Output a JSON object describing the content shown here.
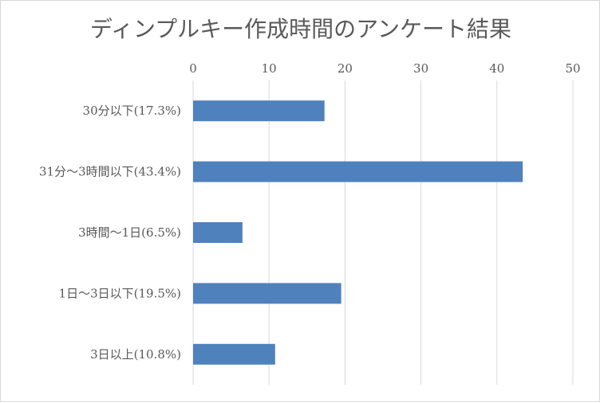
{
  "chart_data": {
    "type": "bar",
    "orientation": "horizontal",
    "title": "ディンプルキー作成時間のアンケート結果",
    "categories": [
      "30分以下(17.3%)",
      "31分〜3時間以下(43.4%)",
      "3時間〜1日(6.5%)",
      "1日〜3日以下(19.5%)",
      "3日以上(10.8%)"
    ],
    "values": [
      17.3,
      43.4,
      6.5,
      19.5,
      10.8
    ],
    "xlim": [
      0,
      50
    ],
    "xticks": [
      "0",
      "10",
      "20",
      "30",
      "40",
      "50"
    ],
    "xtick_values": [
      0,
      10,
      20,
      30,
      40,
      50
    ],
    "axis_position": "top",
    "grid": true,
    "legend": "none",
    "bar_color": "#4f81bd",
    "grid_color": "#d9d9d9"
  }
}
